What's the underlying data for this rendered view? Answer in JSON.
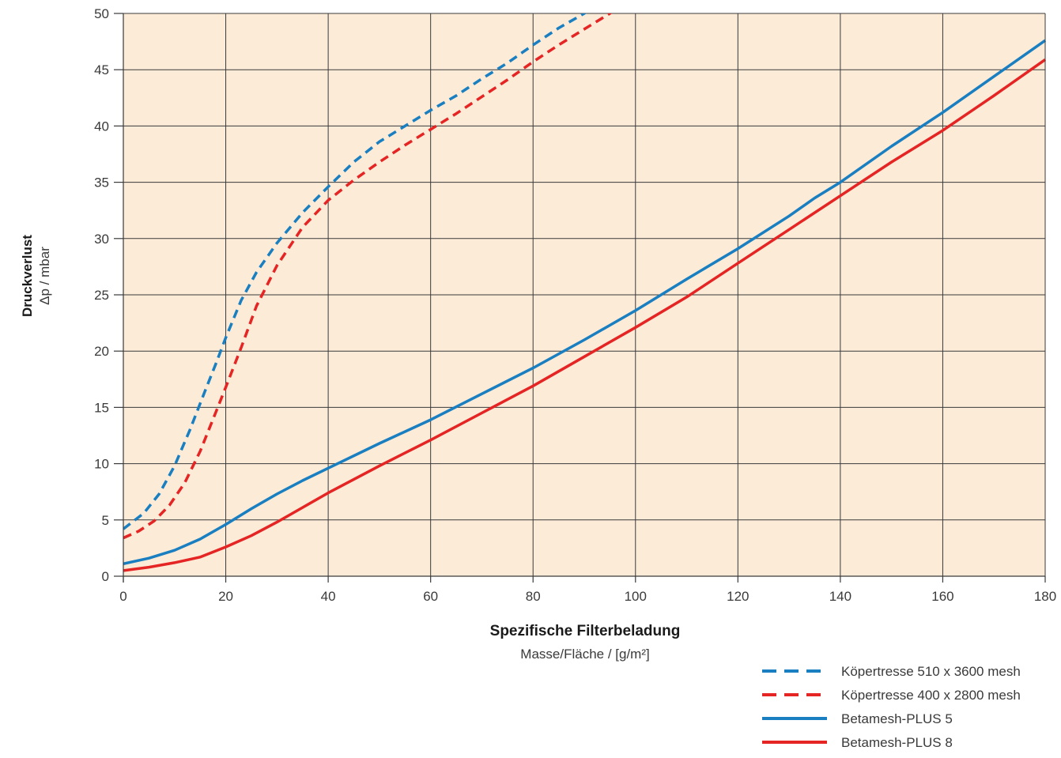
{
  "chart_data": {
    "type": "line",
    "title": "",
    "ylabel": "Druckverlust",
    "ylabel_unit": "Δp / mbar",
    "xlabel": "Spezifische Filterbeladung",
    "xlabel_unit": "Masse/Fläche / [g/m²]",
    "xlim": [
      0,
      180
    ],
    "ylim": [
      0,
      50
    ],
    "x_ticks": [
      0,
      20,
      40,
      60,
      80,
      100,
      120,
      140,
      160,
      180
    ],
    "y_ticks": [
      0,
      5,
      10,
      15,
      20,
      25,
      30,
      35,
      40,
      45,
      50
    ],
    "grid": true,
    "plot_background": "#fcebd7",
    "legend_position": "bottom-right",
    "series": [
      {
        "name": "Köpertresse 510 x 3600 mesh",
        "color": "#1a7fc1",
        "style": "dashed",
        "x": [
          0,
          4,
          7,
          10,
          13,
          16,
          18,
          20,
          23,
          26,
          30,
          35,
          40,
          45,
          50,
          55,
          60,
          65,
          70,
          75,
          80,
          85,
          90,
          93
        ],
        "y": [
          4.2,
          5.6,
          7.3,
          9.8,
          13,
          16.5,
          18.8,
          21.2,
          24.5,
          27,
          29.6,
          32.3,
          34.6,
          36.8,
          38.6,
          40,
          41.4,
          42.7,
          44.2,
          45.6,
          47.2,
          48.7,
          50,
          51
        ]
      },
      {
        "name": "Köpertresse 400 x 2800 mesh",
        "color": "#e52424",
        "style": "dashed",
        "x": [
          0,
          3,
          6,
          9,
          12,
          15,
          18,
          20,
          23,
          26,
          30,
          35,
          40,
          45,
          50,
          55,
          60,
          65,
          70,
          75,
          80,
          85,
          90,
          95,
          97
        ],
        "y": [
          3.4,
          4.0,
          4.9,
          6.3,
          8.3,
          11.1,
          14.5,
          16.8,
          20.3,
          24,
          27.6,
          31,
          33.4,
          35.2,
          36.8,
          38.3,
          39.7,
          41.1,
          42.6,
          44.1,
          45.7,
          47.2,
          48.6,
          50,
          50.7
        ]
      },
      {
        "name": "Betamesh-PLUS 5",
        "color": "#1a7fc1",
        "style": "solid",
        "x": [
          0,
          5,
          10,
          15,
          20,
          25,
          30,
          35,
          40,
          50,
          60,
          70,
          80,
          90,
          100,
          110,
          120,
          130,
          135,
          140,
          150,
          160,
          170,
          180
        ],
        "y": [
          1.1,
          1.6,
          2.3,
          3.3,
          4.6,
          6.0,
          7.3,
          8.5,
          9.6,
          11.8,
          13.9,
          16.2,
          18.5,
          21.0,
          23.6,
          26.4,
          29.1,
          32.0,
          33.6,
          35.0,
          38.2,
          41.2,
          44.4,
          47.6
        ]
      },
      {
        "name": "Betamesh-PLUS 8",
        "color": "#e52424",
        "style": "solid",
        "x": [
          0,
          5,
          10,
          15,
          20,
          25,
          30,
          35,
          40,
          50,
          60,
          70,
          80,
          90,
          100,
          110,
          120,
          130,
          140,
          150,
          160,
          170,
          180
        ],
        "y": [
          0.5,
          0.8,
          1.2,
          1.7,
          2.6,
          3.6,
          4.8,
          6.1,
          7.4,
          9.8,
          12.1,
          14.5,
          16.9,
          19.5,
          22.1,
          24.8,
          27.8,
          30.8,
          33.8,
          36.8,
          39.6,
          42.7,
          45.9
        ]
      }
    ]
  }
}
